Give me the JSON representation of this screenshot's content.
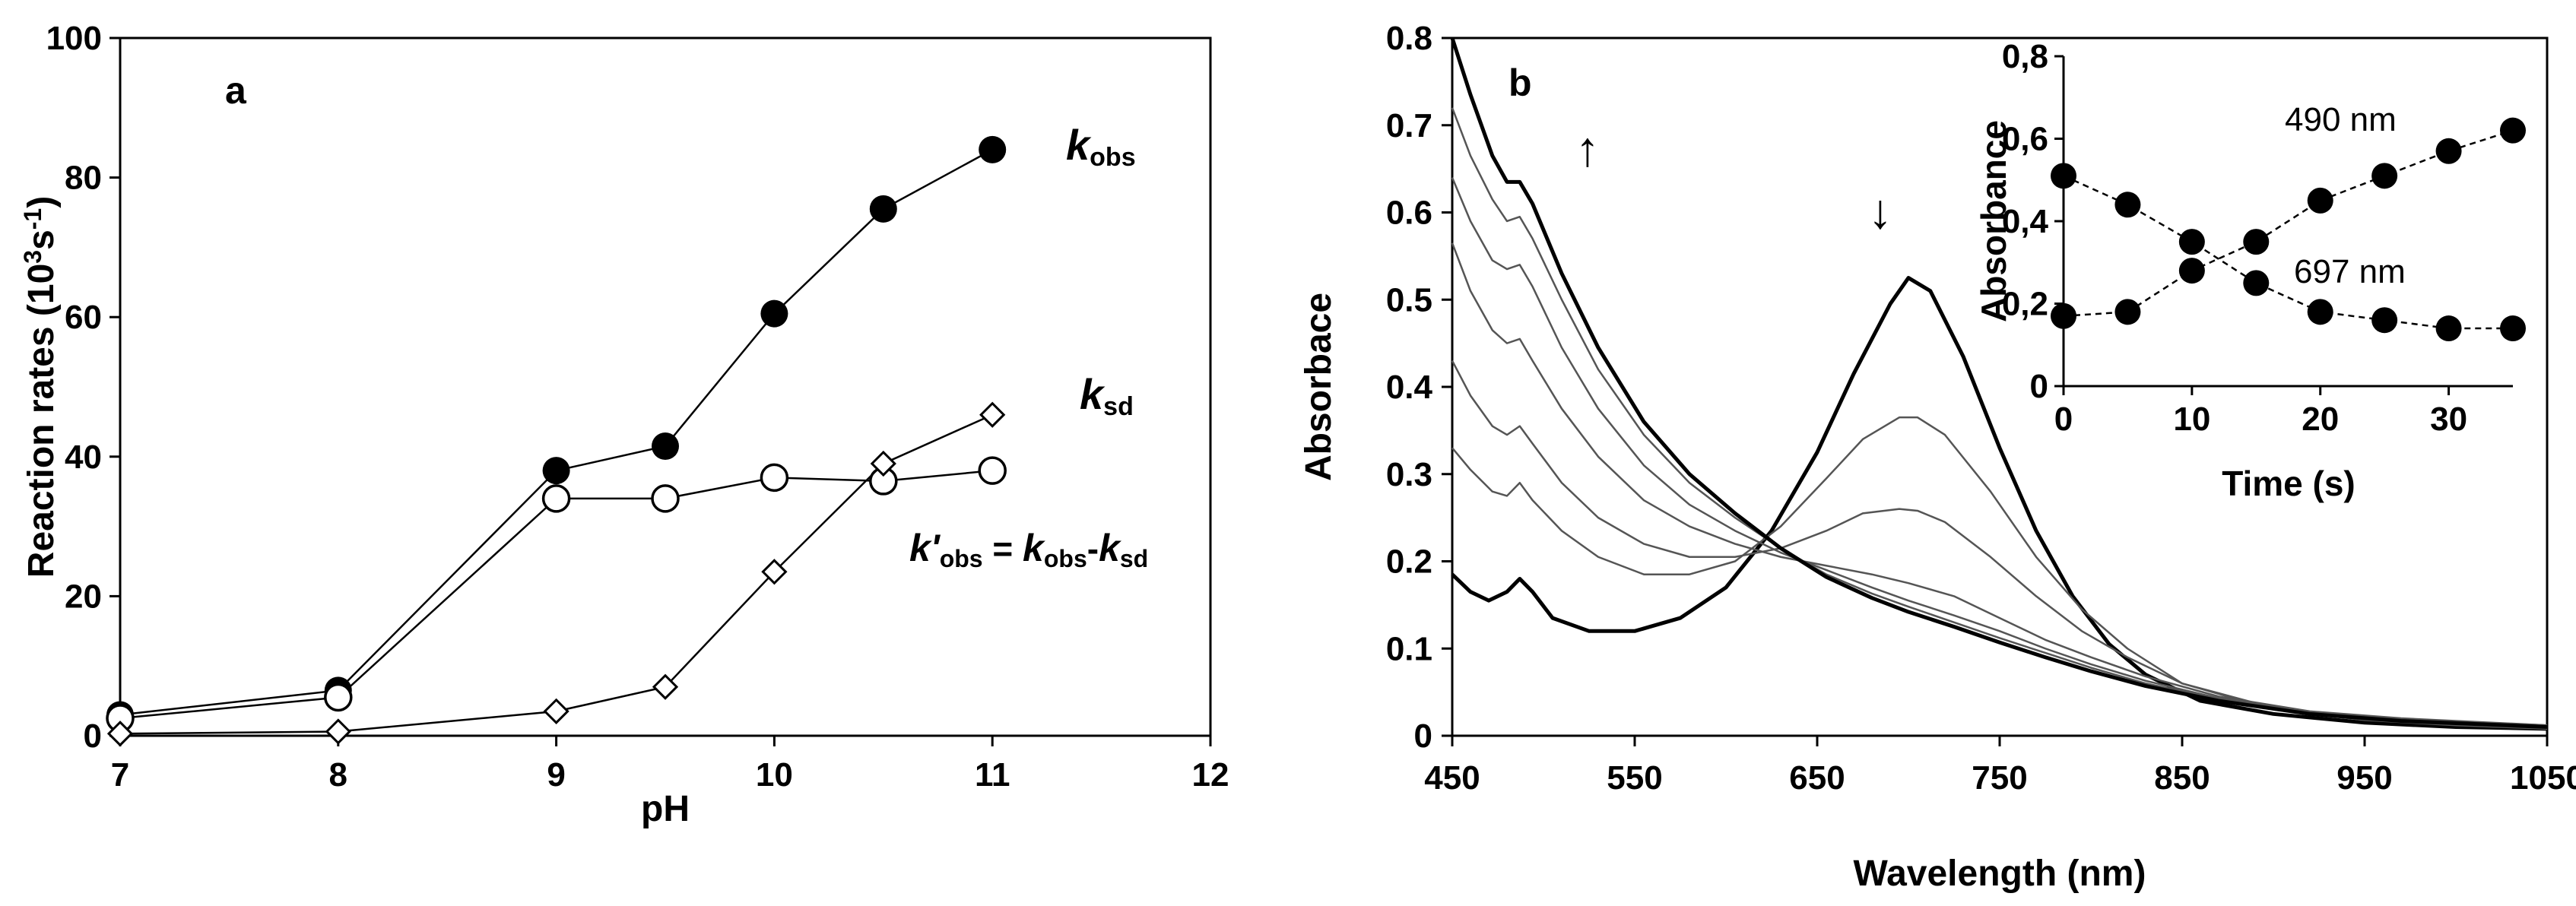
{
  "colors": {
    "ink": "#000000",
    "curve_gray": "#555555",
    "background": "#ffffff"
  },
  "chart_data": [
    {
      "type": "line",
      "panel": "a",
      "xlabel": "pH",
      "ylabel_main": "Reaction rates (10",
      "ylabel_sup1": "3",
      "ylabel_mid": "s",
      "ylabel_sup2": "-1",
      "ylabel_end": ")",
      "xlim": [
        7,
        12
      ],
      "ylim": [
        0,
        100
      ],
      "xticks": [
        "7",
        "8",
        "9",
        "10",
        "11",
        "12"
      ],
      "yticks": [
        "0",
        "20",
        "40",
        "60",
        "80",
        "100"
      ],
      "series": [
        {
          "name": "k_obs",
          "marker": "filled-circle",
          "x": [
            7,
            8,
            9,
            9.5,
            10,
            10.5,
            11
          ],
          "y": [
            3,
            6.5,
            38,
            41.5,
            60.5,
            75.5,
            84
          ]
        },
        {
          "name": "k'_obs",
          "marker": "open-circle",
          "x": [
            7,
            8,
            9,
            9.5,
            10,
            10.5,
            11
          ],
          "y": [
            2.5,
            5.5,
            34,
            34,
            37,
            36.5,
            38
          ]
        },
        {
          "name": "k_sd",
          "marker": "open-diamond",
          "x": [
            7,
            8,
            9,
            9.5,
            10,
            10.5,
            11
          ],
          "y": [
            0.3,
            0.6,
            3.5,
            7,
            23.5,
            39,
            46
          ]
        }
      ],
      "labels": {
        "kobs_k": "k",
        "kobs_sub": "obs",
        "ksd_k": "k",
        "ksd_sub": "sd",
        "kprime_k": "k'",
        "kprime_sub": "obs",
        "kprime_eq": " = ",
        "kprime_k2": "k",
        "kprime_sub2": "obs",
        "kprime_minus": "-",
        "kprime_k3": "k",
        "kprime_sub3": "sd"
      }
    },
    {
      "type": "line",
      "panel": "b",
      "xlabel": "Wavelength (nm)",
      "ylabel": "Absorbace",
      "xlim": [
        450,
        1050
      ],
      "ylim": [
        0,
        0.8
      ],
      "xticks": [
        "450",
        "550",
        "650",
        "750",
        "850",
        "950",
        "1050"
      ],
      "yticks": [
        "0",
        "0.1",
        "0.2",
        "0.3",
        "0.4",
        "0.5",
        "0.6",
        "0.7",
        "0.8"
      ],
      "arrow_up": "↑",
      "arrow_down": "↓",
      "spectra": [
        {
          "name": "t0",
          "bold": true,
          "points": [
            [
              450,
              0.185
            ],
            [
              460,
              0.165
            ],
            [
              470,
              0.155
            ],
            [
              480,
              0.165
            ],
            [
              487,
              0.18
            ],
            [
              494,
              0.165
            ],
            [
              505,
              0.135
            ],
            [
              525,
              0.12
            ],
            [
              550,
              0.12
            ],
            [
              575,
              0.135
            ],
            [
              600,
              0.17
            ],
            [
              625,
              0.235
            ],
            [
              650,
              0.325
            ],
            [
              670,
              0.415
            ],
            [
              690,
              0.495
            ],
            [
              700,
              0.525
            ],
            [
              712,
              0.51
            ],
            [
              730,
              0.435
            ],
            [
              750,
              0.33
            ],
            [
              770,
              0.235
            ],
            [
              790,
              0.16
            ],
            [
              810,
              0.105
            ],
            [
              830,
              0.07
            ],
            [
              860,
              0.04
            ],
            [
              900,
              0.025
            ],
            [
              950,
              0.015
            ],
            [
              1000,
              0.01
            ],
            [
              1050,
              0.008
            ]
          ]
        },
        {
          "name": "t1",
          "bold": false,
          "points": [
            [
              450,
              0.33
            ],
            [
              460,
              0.305
            ],
            [
              472,
              0.28
            ],
            [
              480,
              0.275
            ],
            [
              487,
              0.29
            ],
            [
              494,
              0.27
            ],
            [
              510,
              0.235
            ],
            [
              530,
              0.205
            ],
            [
              555,
              0.185
            ],
            [
              580,
              0.185
            ],
            [
              605,
              0.2
            ],
            [
              630,
              0.24
            ],
            [
              655,
              0.295
            ],
            [
              675,
              0.34
            ],
            [
              695,
              0.365
            ],
            [
              705,
              0.365
            ],
            [
              720,
              0.345
            ],
            [
              745,
              0.28
            ],
            [
              770,
              0.205
            ],
            [
              795,
              0.145
            ],
            [
              820,
              0.1
            ],
            [
              850,
              0.06
            ],
            [
              900,
              0.03
            ],
            [
              950,
              0.018
            ],
            [
              1000,
              0.012
            ],
            [
              1050,
              0.008
            ]
          ]
        },
        {
          "name": "t2",
          "bold": false,
          "points": [
            [
              450,
              0.43
            ],
            [
              460,
              0.39
            ],
            [
              472,
              0.355
            ],
            [
              480,
              0.345
            ],
            [
              487,
              0.355
            ],
            [
              494,
              0.335
            ],
            [
              510,
              0.29
            ],
            [
              530,
              0.25
            ],
            [
              555,
              0.22
            ],
            [
              580,
              0.205
            ],
            [
              605,
              0.205
            ],
            [
              630,
              0.215
            ],
            [
              655,
              0.235
            ],
            [
              675,
              0.255
            ],
            [
              695,
              0.26
            ],
            [
              705,
              0.258
            ],
            [
              720,
              0.245
            ],
            [
              745,
              0.205
            ],
            [
              770,
              0.16
            ],
            [
              795,
              0.12
            ],
            [
              820,
              0.09
            ],
            [
              850,
              0.06
            ],
            [
              900,
              0.032
            ],
            [
              950,
              0.02
            ],
            [
              1000,
              0.014
            ],
            [
              1050,
              0.01
            ]
          ]
        },
        {
          "name": "t3",
          "bold": false,
          "points": [
            [
              450,
              0.565
            ],
            [
              460,
              0.51
            ],
            [
              472,
              0.465
            ],
            [
              480,
              0.45
            ],
            [
              487,
              0.455
            ],
            [
              494,
              0.43
            ],
            [
              510,
              0.375
            ],
            [
              530,
              0.32
            ],
            [
              555,
              0.27
            ],
            [
              580,
              0.24
            ],
            [
              605,
              0.22
            ],
            [
              630,
              0.205
            ],
            [
              655,
              0.195
            ],
            [
              680,
              0.185
            ],
            [
              700,
              0.175
            ],
            [
              725,
              0.16
            ],
            [
              750,
              0.135
            ],
            [
              775,
              0.11
            ],
            [
              800,
              0.09
            ],
            [
              830,
              0.068
            ],
            [
              870,
              0.045
            ],
            [
              920,
              0.028
            ],
            [
              970,
              0.02
            ],
            [
              1050,
              0.012
            ]
          ]
        },
        {
          "name": "t4",
          "bold": false,
          "points": [
            [
              450,
              0.64
            ],
            [
              460,
              0.59
            ],
            [
              472,
              0.545
            ],
            [
              480,
              0.535
            ],
            [
              487,
              0.54
            ],
            [
              494,
              0.515
            ],
            [
              510,
              0.445
            ],
            [
              530,
              0.375
            ],
            [
              555,
              0.31
            ],
            [
              580,
              0.265
            ],
            [
              605,
              0.235
            ],
            [
              630,
              0.21
            ],
            [
              655,
              0.19
            ],
            [
              680,
              0.17
            ],
            [
              700,
              0.155
            ],
            [
              725,
              0.138
            ],
            [
              750,
              0.12
            ],
            [
              775,
              0.1
            ],
            [
              800,
              0.082
            ],
            [
              830,
              0.063
            ],
            [
              870,
              0.043
            ],
            [
              920,
              0.027
            ],
            [
              970,
              0.019
            ],
            [
              1050,
              0.012
            ]
          ]
        },
        {
          "name": "t5",
          "bold": false,
          "points": [
            [
              450,
              0.72
            ],
            [
              460,
              0.665
            ],
            [
              472,
              0.615
            ],
            [
              480,
              0.59
            ],
            [
              487,
              0.595
            ],
            [
              494,
              0.57
            ],
            [
              510,
              0.5
            ],
            [
              530,
              0.42
            ],
            [
              555,
              0.345
            ],
            [
              580,
              0.29
            ],
            [
              605,
              0.25
            ],
            [
              630,
              0.215
            ],
            [
              655,
              0.185
            ],
            [
              680,
              0.163
            ],
            [
              700,
              0.148
            ],
            [
              725,
              0.13
            ],
            [
              750,
              0.112
            ],
            [
              775,
              0.095
            ],
            [
              800,
              0.078
            ],
            [
              830,
              0.06
            ],
            [
              870,
              0.042
            ],
            [
              920,
              0.026
            ],
            [
              970,
              0.018
            ],
            [
              1050,
              0.011
            ]
          ]
        },
        {
          "name": "t6",
          "bold": true,
          "points": [
            [
              450,
              0.8
            ],
            [
              460,
              0.735
            ],
            [
              472,
              0.665
            ],
            [
              480,
              0.635
            ],
            [
              487,
              0.635
            ],
            [
              494,
              0.61
            ],
            [
              510,
              0.53
            ],
            [
              530,
              0.445
            ],
            [
              555,
              0.36
            ],
            [
              580,
              0.3
            ],
            [
              605,
              0.255
            ],
            [
              630,
              0.215
            ],
            [
              655,
              0.182
            ],
            [
              680,
              0.158
            ],
            [
              700,
              0.142
            ],
            [
              725,
              0.125
            ],
            [
              750,
              0.107
            ],
            [
              775,
              0.09
            ],
            [
              800,
              0.074
            ],
            [
              830,
              0.057
            ],
            [
              870,
              0.04
            ],
            [
              920,
              0.025
            ],
            [
              970,
              0.017
            ],
            [
              1050,
              0.01
            ]
          ]
        }
      ],
      "inset": {
        "xlabel": "Time (s)",
        "ylabel": "Absorbance",
        "xlim": [
          0,
          35
        ],
        "ylim": [
          0,
          0.8
        ],
        "xticks": [
          "0",
          "10",
          "20",
          "30"
        ],
        "yticks": [
          "0",
          "0,2",
          "0,4",
          "0,6",
          "0,8"
        ],
        "series": [
          {
            "name": "490 nm",
            "x": [
              0,
              5,
              10,
              15,
              20,
              25,
              30,
              35
            ],
            "y": [
              0.17,
              0.18,
              0.28,
              0.35,
              0.45,
              0.51,
              0.57,
              0.62
            ]
          },
          {
            "name": "697 nm",
            "x": [
              0,
              5,
              10,
              15,
              20,
              25,
              30,
              35
            ],
            "y": [
              0.51,
              0.44,
              0.35,
              0.25,
              0.18,
              0.16,
              0.14,
              0.14
            ]
          }
        ]
      }
    }
  ]
}
